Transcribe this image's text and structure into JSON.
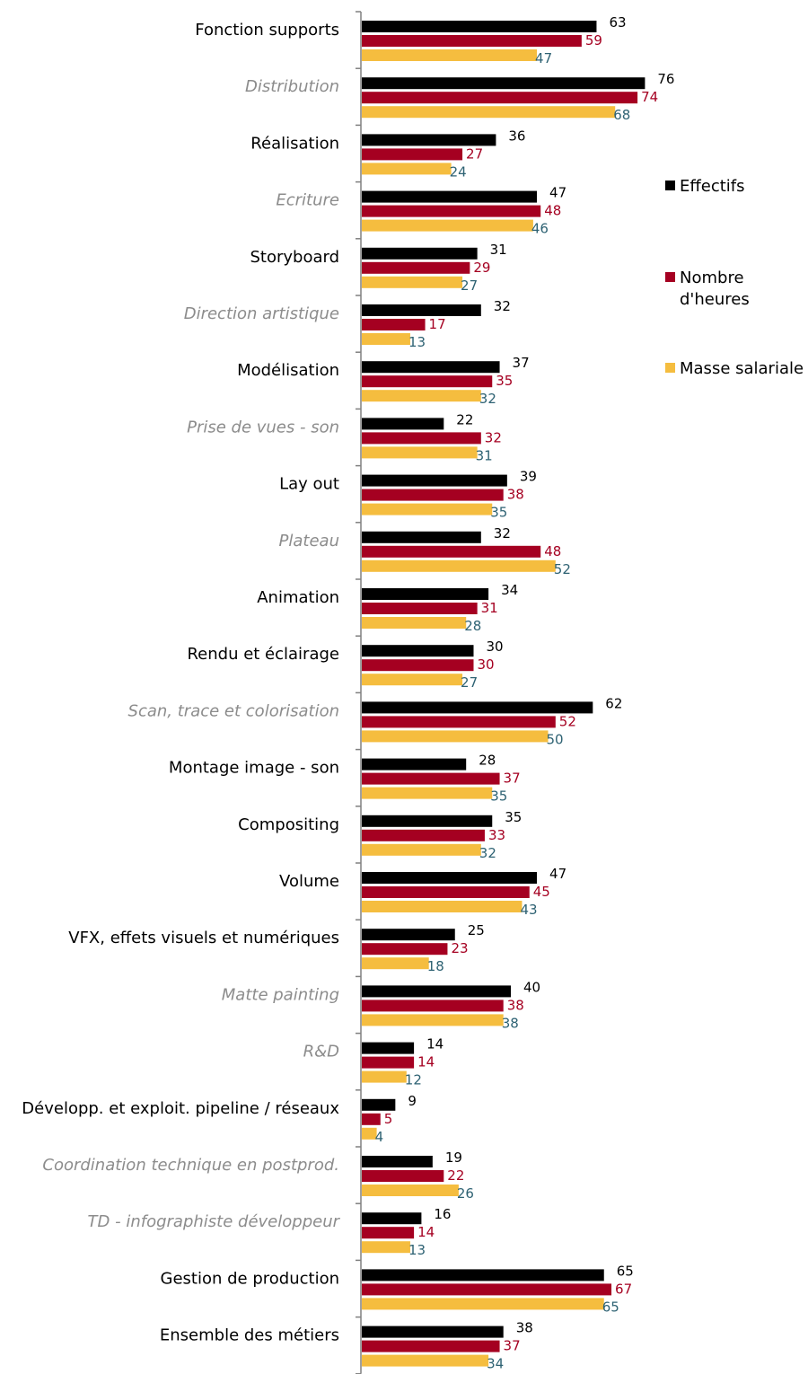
{
  "chart_data": {
    "type": "bar",
    "orientation": "horizontal",
    "categories": [
      "Fonction supports",
      "Distribution",
      "Réalisation",
      "Ecriture",
      "Storyboard",
      "Direction artistique",
      "Modélisation",
      "Prise de vues - son",
      "Lay out",
      "Plateau",
      "Animation",
      "Rendu et éclairage",
      "Scan, trace et colorisation",
      "Montage image - son",
      "Compositing",
      "Volume",
      "VFX, effets visuels et numériques",
      "Matte painting",
      "R&D",
      "Développ. et exploit. pipeline / réseaux",
      "Coordination technique en postprod.",
      "TD - infographiste développeur",
      "Gestion de production",
      "Ensemble des métiers"
    ],
    "category_style": [
      "normal",
      "italic",
      "normal",
      "italic",
      "normal",
      "italic",
      "normal",
      "italic",
      "normal",
      "italic",
      "normal",
      "normal",
      "italic",
      "normal",
      "normal",
      "normal",
      "normal",
      "italic",
      "italic",
      "normal",
      "italic",
      "italic",
      "normal",
      "normal"
    ],
    "series": [
      {
        "name": "Effectifs",
        "color": "#000000",
        "label_color": "#000000",
        "values": [
          63,
          76,
          36,
          47,
          31,
          32,
          37,
          22,
          39,
          32,
          34,
          30,
          62,
          28,
          35,
          47,
          25,
          40,
          14,
          9,
          19,
          16,
          65,
          38
        ]
      },
      {
        "name": "Nombre d'heures",
        "color": "#a50021",
        "label_color": "#a50021",
        "values": [
          59,
          74,
          27,
          48,
          29,
          17,
          35,
          32,
          38,
          48,
          31,
          30,
          52,
          37,
          33,
          45,
          23,
          38,
          14,
          5,
          22,
          14,
          67,
          37
        ]
      },
      {
        "name": "Masse salariale",
        "color": "#f5bd3f",
        "label_color": "#2e6273",
        "values": [
          47,
          68,
          24,
          46,
          27,
          13,
          32,
          31,
          35,
          52,
          28,
          27,
          50,
          35,
          32,
          43,
          18,
          38,
          12,
          4,
          26,
          13,
          65,
          34
        ]
      }
    ],
    "legend": {
      "position": "right",
      "entries": [
        "Effectifs",
        "Nombre\nd'heures",
        "Masse salariale"
      ]
    },
    "colors": {
      "normal_label": "#000000",
      "italic_label": "#8c8c8c",
      "axis": "#808080"
    },
    "grid": false
  }
}
